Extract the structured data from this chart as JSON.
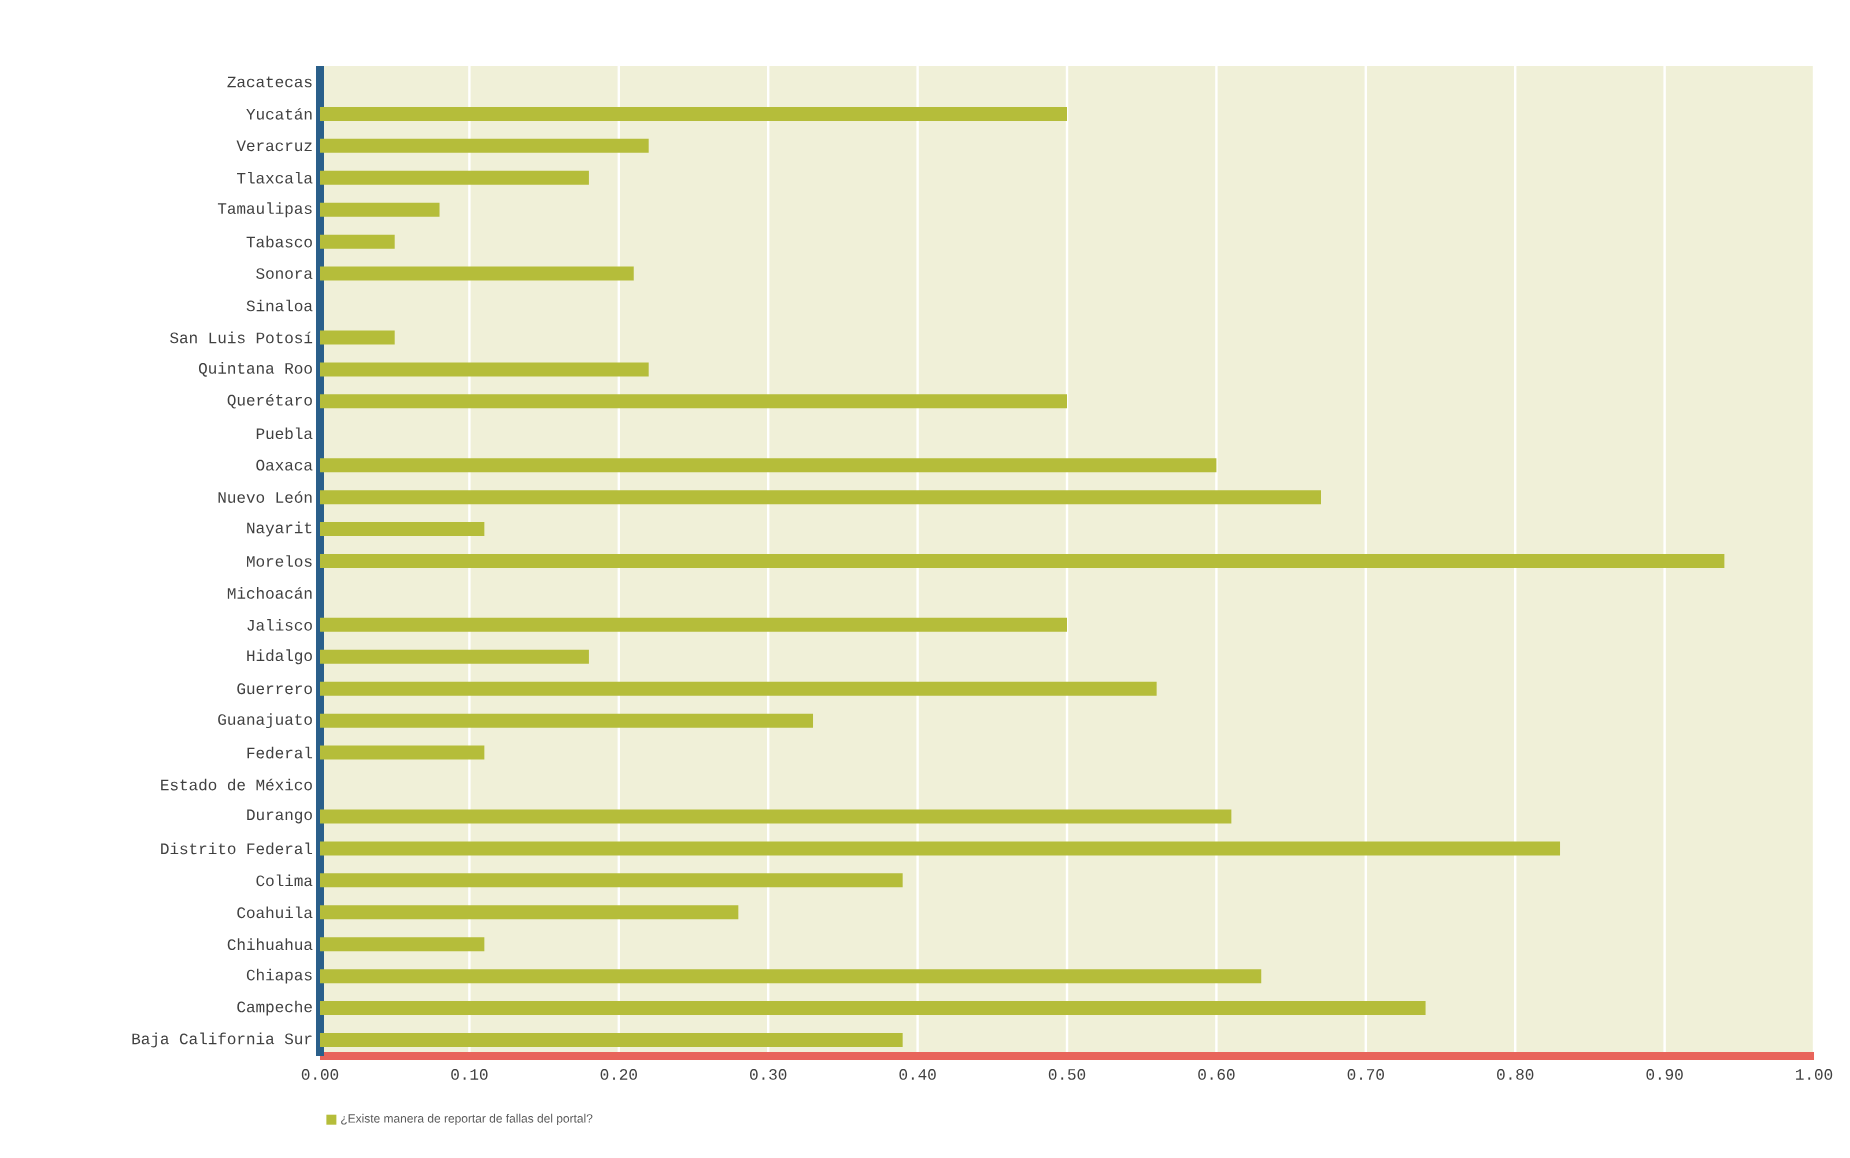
{
  "chart_data": {
    "type": "bar",
    "orientation": "horizontal",
    "categories": [
      "Zacatecas",
      "Yucatán",
      "Veracruz",
      "Tlaxcala",
      "Tamaulipas",
      "Tabasco",
      "Sonora",
      "Sinaloa",
      "San Luis Potosí",
      "Quintana Roo",
      "Querétaro",
      "Puebla",
      "Oaxaca",
      "Nuevo León",
      "Nayarit",
      "Morelos",
      "Michoacán",
      "Jalisco",
      "Hidalgo",
      "Guerrero",
      "Guanajuato",
      "Federal",
      "Estado de México",
      "Durango",
      "Distrito Federal",
      "Colima",
      "Coahuila",
      "Chihuahua",
      "Chiapas",
      "Campeche",
      "Baja California Sur"
    ],
    "series": [
      {
        "name": "¿Existe manera de reportar de fallas del portal?",
        "color": "#b5bd3a",
        "values": [
          0,
          0.5,
          0.22,
          0.18,
          0.08,
          0.05,
          0.21,
          0,
          0.05,
          0.22,
          0.5,
          0,
          0.6,
          0.67,
          0.11,
          0.94,
          0,
          0.5,
          0.18,
          0.56,
          0.33,
          0.11,
          0,
          0.61,
          0.83,
          0.39,
          0.28,
          0.11,
          0.63,
          0.74,
          0.39
        ]
      }
    ],
    "xlim": [
      0,
      1
    ],
    "xticks": [
      {
        "value": 0,
        "label": "0.00"
      },
      {
        "value": 0.1,
        "label": "0.10"
      },
      {
        "value": 0.2,
        "label": "0.20"
      },
      {
        "value": 0.3,
        "label": "0.30"
      },
      {
        "value": 0.4,
        "label": "0.40"
      },
      {
        "value": 0.5,
        "label": "0.50"
      },
      {
        "value": 0.6,
        "label": "0.60"
      },
      {
        "value": 0.7,
        "label": "0.70"
      },
      {
        "value": 0.8,
        "label": "0.80"
      },
      {
        "value": 0.9,
        "label": "0.90"
      },
      {
        "value": 1,
        "label": "1.00"
      }
    ],
    "grid": "x",
    "legend": "bottom left"
  }
}
